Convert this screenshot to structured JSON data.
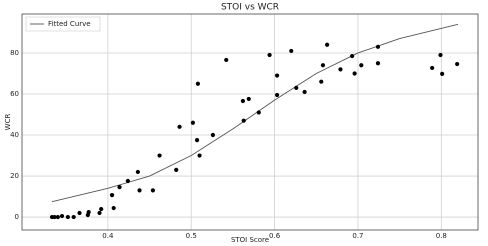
{
  "chart_data": {
    "type": "scatter",
    "title": "STOI vs WCR",
    "x_label": "STOI Score",
    "y_label": "WCR",
    "xlim": [
      0.297,
      0.844
    ],
    "ylim": [
      -6.3,
      99
    ],
    "xticks": [
      0.4,
      0.5,
      0.6,
      0.7,
      0.8
    ],
    "yticks": [
      0,
      20,
      40,
      60,
      80
    ],
    "grid": true,
    "legend": "upper left",
    "series": [
      {
        "name": "Fitted Curve",
        "mark": "line",
        "color": "#555555",
        "x": [
          0.333,
          0.4,
          0.45,
          0.5,
          0.55,
          0.6,
          0.65,
          0.7,
          0.75,
          0.82
        ],
        "values": [
          7.5,
          14,
          20,
          30,
          43,
          57,
          70,
          80,
          87,
          94
        ]
      },
      {
        "mark": "point",
        "color": "#000000",
        "x": [
          0.333,
          0.336,
          0.34,
          0.345,
          0.352,
          0.359,
          0.366,
          0.376,
          0.377,
          0.39,
          0.392,
          0.405,
          0.407,
          0.414,
          0.424,
          0.436,
          0.438,
          0.454,
          0.462,
          0.482,
          0.486,
          0.502,
          0.508,
          0.507,
          0.51,
          0.526,
          0.542,
          0.562,
          0.563,
          0.569,
          0.581,
          0.594,
          0.603,
          0.603,
          0.62,
          0.626,
          0.636,
          0.656,
          0.658,
          0.663,
          0.679,
          0.693,
          0.696,
          0.704,
          0.724,
          0.724,
          0.789,
          0.799,
          0.801,
          0.819
        ],
        "values": [
          0,
          0,
          0,
          0.5,
          0,
          0,
          2,
          1,
          2.4,
          2,
          3.9,
          10.7,
          4.4,
          14.6,
          17.6,
          22,
          13,
          13,
          30,
          23,
          44,
          46,
          65,
          37.5,
          30,
          40,
          76.6,
          56.6,
          47,
          57.6,
          51,
          79,
          69,
          59.5,
          81,
          63,
          61,
          66,
          74,
          84,
          72,
          78.5,
          70,
          74,
          75,
          83,
          72.7,
          79,
          69.8,
          74.6
        ]
      }
    ]
  }
}
